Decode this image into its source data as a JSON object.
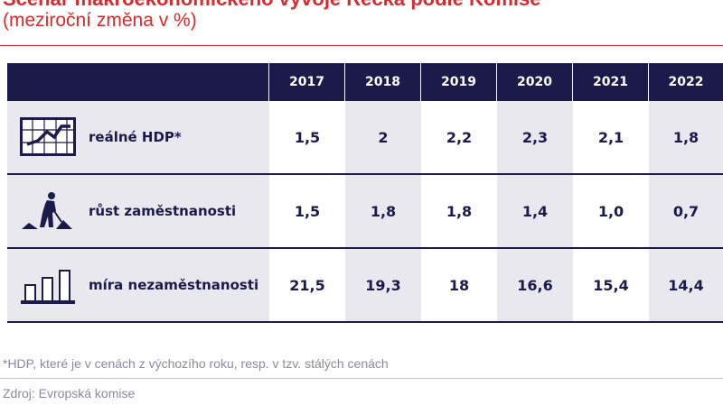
{
  "title": "Scénář makroekonomického vývoje Řecka podle Komise",
  "subtitle": "(meziroční změna v %)",
  "colors": {
    "accent": "#d62b2f",
    "navy": "#1b1b4b",
    "stripe": "#e8e8ee"
  },
  "table": {
    "years": [
      "2017",
      "2018",
      "2019",
      "2020",
      "2021",
      "2022"
    ],
    "rows": [
      {
        "icon": "line-chart-icon",
        "label": "reálné HDP*",
        "values": [
          "1,5",
          "2",
          "2,2",
          "2,3",
          "2,1",
          "1,8"
        ]
      },
      {
        "icon": "worker-shovel-icon",
        "label": "růst zaměstnanosti",
        "values": [
          "1,5",
          "1,8",
          "1,8",
          "1,4",
          "1,0",
          "0,7"
        ]
      },
      {
        "icon": "bar-chart-icon",
        "label": "míra nezaměstnanosti",
        "values": [
          "21,5",
          "19,3",
          "18",
          "16,6",
          "15,4",
          "14,4"
        ]
      }
    ]
  },
  "footnote": "*HDP, které je v cenách z výchozího roku, resp. v tzv. stálých cenách",
  "source": "Zdroj: Evropská komise"
}
